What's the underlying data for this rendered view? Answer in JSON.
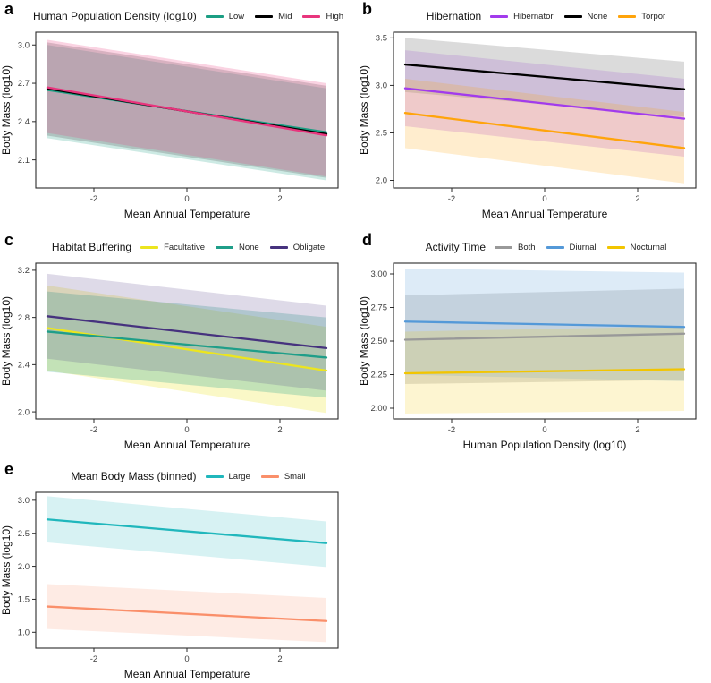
{
  "figure": {
    "background": "#ffffff",
    "frame_color": "#2b2b2b",
    "tick_text_color": "#404040",
    "axis_title_color": "#0d0d0d"
  },
  "chart_data": [
    {
      "id": "a",
      "type": "line",
      "legend_title": "Human Population Density (log10)",
      "xlabel": "Mean Annual Temperature",
      "ylabel": "Body Mass (log10)",
      "legend_position": "top",
      "grid": "off",
      "x": [
        -3,
        3
      ],
      "xlim": [
        -3.25,
        3.25
      ],
      "ylim": [
        1.88,
        3.1
      ],
      "xtick_vals": [
        -2,
        0,
        2
      ],
      "xtick_labels": [
        "-2",
        "0",
        "2"
      ],
      "ytick_vals": [
        2.1,
        2.4,
        2.7,
        3.0
      ],
      "ytick_labels": [
        "2.1",
        "2.4",
        "2.7",
        "3.0"
      ],
      "series": [
        {
          "name": "Low",
          "color": "#1B9E83",
          "ribbon_alpha": 0.22,
          "line_y": [
            2.648,
            2.316
          ],
          "ribbon_lower": [
            2.27,
            1.94
          ],
          "ribbon_upper": [
            3.0,
            2.66
          ]
        },
        {
          "name": "Mid",
          "color": "#000000",
          "ribbon_color": "#555555",
          "ribbon_alpha": 0.25,
          "line_y": [
            2.658,
            2.302
          ],
          "ribbon_lower": [
            2.29,
            1.96
          ],
          "ribbon_upper": [
            3.02,
            2.68
          ]
        },
        {
          "name": "High",
          "color": "#E8357D",
          "ribbon_alpha": 0.22,
          "line_y": [
            2.668,
            2.292
          ],
          "ribbon_lower": [
            2.31,
            1.97
          ],
          "ribbon_upper": [
            3.04,
            2.7
          ]
        }
      ]
    },
    {
      "id": "b",
      "type": "line",
      "legend_title": "Hibernation",
      "xlabel": "Mean Annual Temperature",
      "ylabel": "Body Mass (log10)",
      "legend_position": "top",
      "grid": "off",
      "x": [
        -3,
        3
      ],
      "xlim": [
        -3.25,
        3.25
      ],
      "ylim": [
        1.92,
        3.56
      ],
      "xtick_vals": [
        -2,
        0,
        2
      ],
      "xtick_labels": [
        "-2",
        "0",
        "2"
      ],
      "ytick_vals": [
        2.0,
        2.5,
        3.0,
        3.5
      ],
      "ytick_labels": [
        "2.0",
        "2.5",
        "3.0",
        "3.5"
      ],
      "series": [
        {
          "name": "Hibernator",
          "color": "#A23BEC",
          "ribbon_alpha": 0.22,
          "line_y": [
            2.97,
            2.65
          ],
          "ribbon_lower": [
            2.57,
            2.25
          ],
          "ribbon_upper": [
            3.37,
            3.07
          ]
        },
        {
          "name": "None",
          "color": "#000000",
          "ribbon_color": "#999999",
          "ribbon_alpha": 0.35,
          "line_y": [
            3.22,
            2.96
          ],
          "ribbon_lower": [
            2.93,
            2.67
          ],
          "ribbon_upper": [
            3.5,
            3.25
          ]
        },
        {
          "name": "Torpor",
          "color": "#FFA40B",
          "ribbon_alpha": 0.2,
          "line_y": [
            2.71,
            2.34
          ],
          "ribbon_lower": [
            2.34,
            1.97
          ],
          "ribbon_upper": [
            3.07,
            2.72
          ]
        }
      ]
    },
    {
      "id": "c",
      "type": "line",
      "legend_title": "Habitat Buffering",
      "xlabel": "Mean Annual Temperature",
      "ylabel": "Body Mass (log10)",
      "legend_position": "top",
      "grid": "off",
      "x": [
        -3,
        3
      ],
      "xlim": [
        -3.25,
        3.25
      ],
      "ylim": [
        1.94,
        3.26
      ],
      "xtick_vals": [
        -2,
        0,
        2
      ],
      "xtick_labels": [
        "-2",
        "0",
        "2"
      ],
      "ytick_vals": [
        2.0,
        2.4,
        2.8,
        3.2
      ],
      "ytick_labels": [
        "2.0",
        "2.4",
        "2.8",
        "3.2"
      ],
      "series": [
        {
          "name": "Facultative",
          "color": "#ECE51F",
          "ribbon_alpha": 0.25,
          "line_y": [
            2.71,
            2.35
          ],
          "ribbon_lower": [
            2.35,
            1.99
          ],
          "ribbon_upper": [
            3.07,
            2.72
          ]
        },
        {
          "name": "None",
          "color": "#1F9E89",
          "ribbon_alpha": 0.25,
          "line_y": [
            2.68,
            2.46
          ],
          "ribbon_lower": [
            2.34,
            2.12
          ],
          "ribbon_upper": [
            3.02,
            2.8
          ]
        },
        {
          "name": "Obligate",
          "color": "#46327E",
          "ribbon_alpha": 0.18,
          "line_y": [
            2.81,
            2.54
          ],
          "ribbon_lower": [
            2.45,
            2.18
          ],
          "ribbon_upper": [
            3.17,
            2.9
          ]
        }
      ]
    },
    {
      "id": "d",
      "type": "line",
      "legend_title": "Activity Time",
      "xlabel": "Human Population Density (log10)",
      "ylabel": "Body Mass (log10)",
      "legend_position": "top",
      "grid": "off",
      "x": [
        -3,
        3
      ],
      "xlim": [
        -3.25,
        3.25
      ],
      "ylim": [
        1.92,
        3.08
      ],
      "xtick_vals": [
        -2,
        0,
        2
      ],
      "xtick_labels": [
        "-2",
        "0",
        "2"
      ],
      "ytick_vals": [
        2.0,
        2.25,
        2.5,
        2.75,
        3.0
      ],
      "ytick_labels": [
        "2.00",
        "2.25",
        "2.50",
        "2.75",
        "3.00"
      ],
      "series": [
        {
          "name": "Both",
          "color": "#999999",
          "ribbon_alpha": 0.3,
          "line_y": [
            2.51,
            2.555
          ],
          "ribbon_lower": [
            2.18,
            2.21
          ],
          "ribbon_upper": [
            2.84,
            2.89
          ]
        },
        {
          "name": "Diurnal",
          "color": "#5499D8",
          "ribbon_alpha": 0.2,
          "line_y": [
            2.645,
            2.605
          ],
          "ribbon_lower": [
            2.25,
            2.2
          ],
          "ribbon_upper": [
            3.04,
            3.01
          ]
        },
        {
          "name": "Nocturnal",
          "color": "#F2C500",
          "ribbon_alpha": 0.18,
          "line_y": [
            2.26,
            2.29
          ],
          "ribbon_lower": [
            1.96,
            1.98
          ],
          "ribbon_upper": [
            2.57,
            2.61
          ]
        }
      ]
    },
    {
      "id": "e",
      "type": "line",
      "legend_title": "Mean Body Mass (binned)",
      "xlabel": "Mean Annual Temperature",
      "ylabel": "Body Mass (log10)",
      "legend_position": "top",
      "grid": "off",
      "x": [
        -3,
        3
      ],
      "xlim": [
        -3.25,
        3.25
      ],
      "ylim": [
        0.76,
        3.12
      ],
      "xtick_vals": [
        -2,
        0,
        2
      ],
      "xtick_labels": [
        "-2",
        "0",
        "2"
      ],
      "ytick_vals": [
        1.0,
        1.5,
        2.0,
        2.5,
        3.0
      ],
      "ytick_labels": [
        "1.0",
        "1.5",
        "2.0",
        "2.5",
        "3.0"
      ],
      "series": [
        {
          "name": "Large",
          "color": "#20B7BC",
          "ribbon_alpha": 0.18,
          "line_y": [
            2.71,
            2.35
          ],
          "ribbon_lower": [
            2.36,
            1.99
          ],
          "ribbon_upper": [
            3.06,
            2.68
          ]
        },
        {
          "name": "Small",
          "color": "#FA8F6A",
          "ribbon_alpha": 0.18,
          "line_y": [
            1.39,
            1.17
          ],
          "ribbon_lower": [
            1.05,
            0.85
          ],
          "ribbon_upper": [
            1.73,
            1.52
          ]
        }
      ]
    }
  ]
}
